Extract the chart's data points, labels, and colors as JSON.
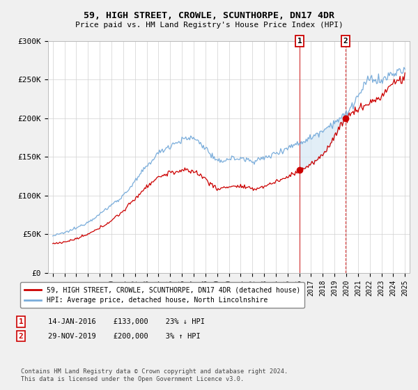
{
  "title": "59, HIGH STREET, CROWLE, SCUNTHORPE, DN17 4DR",
  "subtitle": "Price paid vs. HM Land Registry's House Price Index (HPI)",
  "ylim": [
    0,
    300000
  ],
  "yticks": [
    0,
    50000,
    100000,
    150000,
    200000,
    250000,
    300000
  ],
  "ytick_labels": [
    "£0",
    "£50K",
    "£100K",
    "£150K",
    "£200K",
    "£250K",
    "£300K"
  ],
  "legend_line1": "59, HIGH STREET, CROWLE, SCUNTHORPE, DN17 4DR (detached house)",
  "legend_line2": "HPI: Average price, detached house, North Lincolnshire",
  "transaction1_date": "14-JAN-2016",
  "transaction1_price": "£133,000",
  "transaction1_hpi": "23% ↓ HPI",
  "transaction2_date": "29-NOV-2019",
  "transaction2_price": "£200,000",
  "transaction2_hpi": "3% ↑ HPI",
  "footnote": "Contains HM Land Registry data © Crown copyright and database right 2024.\nThis data is licensed under the Open Government Licence v3.0.",
  "line_color_property": "#cc0000",
  "line_color_hpi": "#7aaddb",
  "shade_color": "#d6e8f5",
  "background_color": "#f0f0f0",
  "plot_bg_color": "#ffffff",
  "transaction1_x": 2016.04,
  "transaction1_y": 133000,
  "transaction2_x": 2019.92,
  "transaction2_y": 200000,
  "xlim_left": 1994.6,
  "xlim_right": 2025.4
}
